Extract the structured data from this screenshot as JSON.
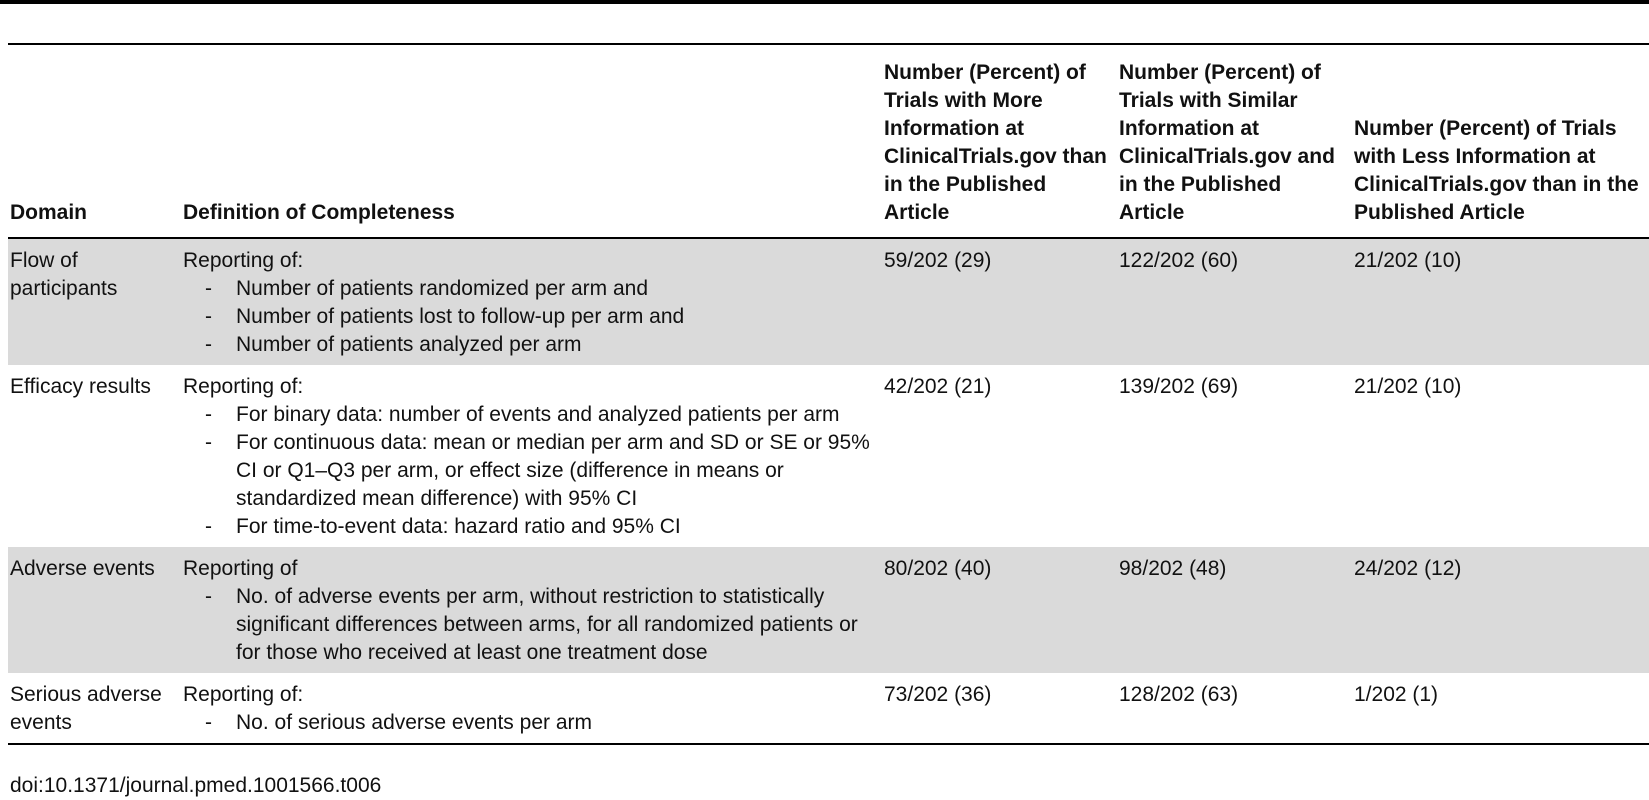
{
  "table": {
    "headers": [
      "Domain",
      "Definition of Completeness",
      "Number (Percent) of Trials with More Information at ClinicalTrials.gov than in the Published Article",
      "Number (Percent) of Trials with Similar Information at ClinicalTrials.gov and in the Published Article",
      "Number (Percent) of Trials with Less Information at ClinicalTrials.gov than in the Published Article"
    ],
    "rows": [
      {
        "domain": "Flow of participants",
        "intro": "Reporting of:",
        "items": [
          "Number of patients randomized per arm and",
          "Number of patients lost to follow-up per arm and",
          "Number of patients analyzed per arm"
        ],
        "more": "59/202 (29)",
        "similar": "122/202 (60)",
        "less": "21/202 (10)"
      },
      {
        "domain": "Efficacy results",
        "intro": "Reporting of:",
        "items": [
          "For binary data: number of events and analyzed patients per arm",
          "For continuous data: mean or median per arm and SD or SE or 95% CI or Q1–Q3 per arm, or effect size (difference in means or standardized mean difference) with 95% CI",
          "For time-to-event data: hazard ratio and 95% CI"
        ],
        "more": "42/202 (21)",
        "similar": "139/202 (69)",
        "less": "21/202 (10)"
      },
      {
        "domain": "Adverse events",
        "intro": "Reporting of",
        "items": [
          "No. of adverse events per arm, without restriction to statistically significant differences between arms, for all randomized patients or for those who received at least one treatment dose"
        ],
        "more": "80/202 (40)",
        "similar": "98/202 (48)",
        "less": "24/202 (12)"
      },
      {
        "domain": "Serious adverse events",
        "intro": "Reporting of:",
        "items": [
          "No. of serious adverse events per arm"
        ],
        "more": "73/202 (36)",
        "similar": "128/202 (63)",
        "less": "1/202 (1)"
      }
    ]
  },
  "footer": {
    "doi": "doi:10.1371/journal.pmed.1001566.t006"
  }
}
